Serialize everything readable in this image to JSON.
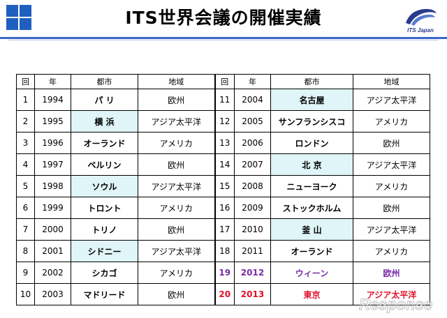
{
  "title": "ITS世界会議の開催実績",
  "logo_caption": "ITS Japan",
  "watermark_text": "Response",
  "colors": {
    "accent_blue": "#1f5fbf",
    "highlight": "#dff5f7",
    "purple": "#7a2aa8",
    "red": "#e0102a"
  },
  "headers": {
    "num": "回",
    "year": "年",
    "city": "都市",
    "region": "地域"
  },
  "rows": [
    {
      "left": {
        "num": "1",
        "year": "1994",
        "city": "パ リ",
        "region": "欧州",
        "hl": false
      },
      "right": {
        "num": "11",
        "year": "2004",
        "city": "名古屋",
        "region": "アジア太平洋",
        "hl": true
      }
    },
    {
      "left": {
        "num": "2",
        "year": "1995",
        "city": "横 浜",
        "region": "アジア太平洋",
        "hl": true
      },
      "right": {
        "num": "12",
        "year": "2005",
        "city": "サンフランシスコ",
        "region": "アメリカ",
        "hl": false
      }
    },
    {
      "left": {
        "num": "3",
        "year": "1996",
        "city": "オーランド",
        "region": "アメリカ",
        "hl": false
      },
      "right": {
        "num": "13",
        "year": "2006",
        "city": "ロンドン",
        "region": "欧州",
        "hl": false
      }
    },
    {
      "left": {
        "num": "4",
        "year": "1997",
        "city": "ベルリン",
        "region": "欧州",
        "hl": false
      },
      "right": {
        "num": "14",
        "year": "2007",
        "city": "北 京",
        "region": "アジア太平洋",
        "hl": true
      }
    },
    {
      "left": {
        "num": "5",
        "year": "1998",
        "city": "ソウル",
        "region": "アジア太平洋",
        "hl": true
      },
      "right": {
        "num": "15",
        "year": "2008",
        "city": "ニューヨーク",
        "region": "アメリカ",
        "hl": false
      }
    },
    {
      "left": {
        "num": "6",
        "year": "1999",
        "city": "トロント",
        "region": "アメリカ",
        "hl": false
      },
      "right": {
        "num": "16",
        "year": "2009",
        "city": "ストックホルム",
        "region": "欧州",
        "hl": false
      }
    },
    {
      "left": {
        "num": "7",
        "year": "2000",
        "city": "トリノ",
        "region": "欧州",
        "hl": false
      },
      "right": {
        "num": "17",
        "year": "2010",
        "city": "釜 山",
        "region": "アジア太平洋",
        "hl": true
      }
    },
    {
      "left": {
        "num": "8",
        "year": "2001",
        "city": "シドニー",
        "region": "アジア太平洋",
        "hl": true
      },
      "right": {
        "num": "18",
        "year": "2011",
        "city": "オーランド",
        "region": "アメリカ",
        "hl": false
      }
    },
    {
      "left": {
        "num": "9",
        "year": "2002",
        "city": "シカゴ",
        "region": "アメリカ",
        "hl": false
      },
      "right": {
        "num": "19",
        "year": "2012",
        "city": "ウィーン",
        "region": "欧州",
        "hl": false,
        "color": "purple"
      }
    },
    {
      "left": {
        "num": "10",
        "year": "2003",
        "city": "マドリード",
        "region": "欧州",
        "hl": false
      },
      "right": {
        "num": "20",
        "year": "2013",
        "city": "東京",
        "region": "アジア太平洋",
        "hl": false,
        "color": "red"
      }
    }
  ]
}
